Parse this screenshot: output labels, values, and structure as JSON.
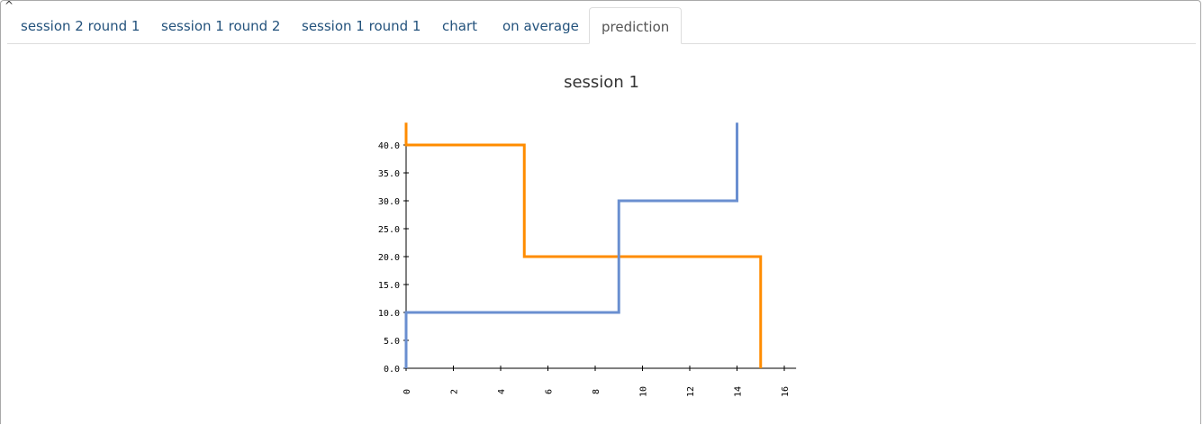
{
  "tabs": [
    {
      "label": "session 2 round 1",
      "active": false
    },
    {
      "label": "session 1 round 2",
      "active": false
    },
    {
      "label": "session 1 round 1",
      "active": false
    },
    {
      "label": "chart",
      "active": false
    },
    {
      "label": "on average",
      "active": false
    },
    {
      "label": "prediction",
      "active": true
    }
  ],
  "collapse_glyph": "^",
  "chart_data": {
    "type": "line",
    "title": "session 1",
    "xlabel": "",
    "ylabel": "",
    "xlim": [
      0,
      16.5
    ],
    "ylim": [
      0,
      44
    ],
    "x_ticks": [
      "0",
      "2",
      "4",
      "6",
      "8",
      "10",
      "12",
      "14",
      "16"
    ],
    "y_ticks": [
      "0.0",
      "5.0",
      "10.0",
      "15.0",
      "20.0",
      "25.0",
      "30.0",
      "35.0",
      "40.0"
    ],
    "grid": false,
    "series": [
      {
        "color": "#ff8c00",
        "step": true,
        "points": [
          [
            0,
            44
          ],
          [
            0,
            40
          ],
          [
            5,
            40
          ],
          [
            5,
            20
          ],
          [
            15,
            20
          ],
          [
            15,
            0
          ]
        ]
      },
      {
        "color": "#6a8fd0",
        "step": true,
        "points": [
          [
            0,
            0
          ],
          [
            0,
            10
          ],
          [
            9,
            10
          ],
          [
            9,
            30
          ],
          [
            14,
            30
          ],
          [
            14,
            44
          ]
        ]
      }
    ]
  }
}
